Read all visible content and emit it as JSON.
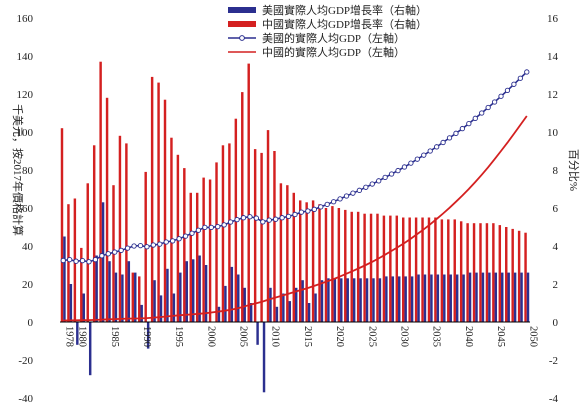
{
  "chart_data": {
    "type": "bar+line",
    "title": "",
    "ylabel_left": "千美元，按2017年價格計算",
    "ylabel_right": "百分比%",
    "y_left_range": [
      -40,
      160
    ],
    "y_left_ticks": [
      -40,
      -20,
      0,
      20,
      40,
      60,
      80,
      100,
      120,
      140,
      160
    ],
    "y_right_range": [
      -4,
      16
    ],
    "y_right_ticks": [
      -4,
      -2,
      0,
      2,
      4,
      6,
      8,
      10,
      12,
      14,
      16
    ],
    "x_range": [
      1978,
      2050
    ],
    "x_ticks": [
      1978,
      1980,
      1985,
      1990,
      1995,
      2000,
      2005,
      2010,
      2015,
      2020,
      2025,
      2030,
      2035,
      2040,
      2045,
      2050
    ],
    "legend_position": "top-right",
    "legend": [
      {
        "key": "us_growth",
        "label": "美國實際人均GDP增長率（右軸）",
        "color": "#2b2f8f",
        "kind": "bar"
      },
      {
        "key": "cn_growth",
        "label": "中國實際人均GDP增長率（右軸）",
        "color": "#d42020",
        "kind": "bar"
      },
      {
        "key": "us_gdp",
        "label": "美國的實際人均GDP（左軸）",
        "color": "#2b2f8f",
        "kind": "line-marker"
      },
      {
        "key": "cn_gdp",
        "label": "中國的實際人均GDP（左軸）",
        "color": "#d42020",
        "kind": "line"
      }
    ],
    "years": [
      1978,
      1979,
      1980,
      1981,
      1982,
      1983,
      1984,
      1985,
      1986,
      1987,
      1988,
      1989,
      1990,
      1991,
      1992,
      1993,
      1994,
      1995,
      1996,
      1997,
      1998,
      1999,
      2000,
      2001,
      2002,
      2003,
      2004,
      2005,
      2006,
      2007,
      2008,
      2009,
      2010,
      2011,
      2012,
      2013,
      2014,
      2015,
      2016,
      2017,
      2018,
      2019,
      2020,
      2021,
      2022,
      2023,
      2024,
      2025,
      2026,
      2027,
      2028,
      2029,
      2030,
      2031,
      2032,
      2033,
      2034,
      2035,
      2036,
      2037,
      2038,
      2039,
      2040,
      2041,
      2042,
      2043,
      2044,
      2045,
      2046,
      2047,
      2048,
      2049,
      2050
    ],
    "series": [
      {
        "key": "cn_growth",
        "axis": "right",
        "values": [
          10.2,
          6.2,
          6.5,
          3.9,
          7.3,
          9.3,
          13.7,
          11.8,
          7.2,
          9.8,
          9.4,
          2.6,
          2.4,
          7.9,
          12.9,
          12.6,
          11.7,
          9.7,
          8.8,
          8.1,
          6.8,
          6.8,
          7.6,
          7.5,
          8.4,
          9.3,
          9.4,
          10.7,
          12.1,
          13.6,
          9.1,
          8.9,
          10.1,
          9.0,
          7.3,
          7.2,
          6.8,
          6.4,
          6.3,
          6.4,
          6.2,
          6.0,
          6.1,
          6.0,
          5.9,
          5.8,
          5.8,
          5.7,
          5.7,
          5.7,
          5.6,
          5.6,
          5.6,
          5.5,
          5.5,
          5.5,
          5.5,
          5.5,
          5.5,
          5.4,
          5.4,
          5.4,
          5.3,
          5.2,
          5.2,
          5.2,
          5.2,
          5.2,
          5.1,
          5.0,
          4.9,
          4.8,
          4.7
        ]
      },
      {
        "key": "us_growth",
        "axis": "right",
        "values": [
          4.5,
          2.0,
          -1.2,
          1.5,
          -2.8,
          3.5,
          6.3,
          3.2,
          2.6,
          2.5,
          3.2,
          2.6,
          0.9,
          -1.4,
          2.2,
          1.4,
          2.8,
          1.5,
          2.6,
          3.2,
          3.3,
          3.5,
          3.0,
          0.0,
          0.8,
          1.9,
          2.9,
          2.5,
          1.8,
          1.0,
          -1.2,
          -3.7,
          1.8,
          0.8,
          1.5,
          1.1,
          1.8,
          2.2,
          1.0,
          1.5,
          2.2,
          2.3,
          2.3,
          2.3,
          2.3,
          2.3,
          2.3,
          2.3,
          2.3,
          2.3,
          2.4,
          2.4,
          2.4,
          2.4,
          2.4,
          2.5,
          2.5,
          2.5,
          2.5,
          2.5,
          2.5,
          2.5,
          2.5,
          2.6,
          2.6,
          2.6,
          2.6,
          2.6,
          2.6,
          2.6,
          2.6,
          2.6,
          2.6
        ]
      },
      {
        "key": "us_gdp",
        "axis": "left",
        "values": [
          32.4,
          32.8,
          32.0,
          32.3,
          31.7,
          32.8,
          34.9,
          35.9,
          36.8,
          37.7,
          38.9,
          40.0,
          40.2,
          39.6,
          40.5,
          41.0,
          42.1,
          42.7,
          43.8,
          45.2,
          46.7,
          48.3,
          49.8,
          49.8,
          50.2,
          51.1,
          52.6,
          53.9,
          54.9,
          55.4,
          54.7,
          52.7,
          53.6,
          54.1,
          54.9,
          55.6,
          56.6,
          57.8,
          58.4,
          59.3,
          60.6,
          61.9,
          63.3,
          64.8,
          66.3,
          67.8,
          69.3,
          70.9,
          72.6,
          74.3,
          76.1,
          77.9,
          79.7,
          81.6,
          83.6,
          85.7,
          87.8,
          90.0,
          92.2,
          94.5,
          96.9,
          99.3,
          101.8,
          104.4,
          107.2,
          110.0,
          112.9,
          115.8,
          118.8,
          121.9,
          125.1,
          128.3,
          131.6
        ]
      },
      {
        "key": "cn_gdp",
        "axis": "left",
        "values": [
          0.8,
          0.85,
          0.9,
          0.93,
          1.0,
          1.1,
          1.25,
          1.4,
          1.5,
          1.65,
          1.8,
          1.85,
          1.9,
          2.05,
          2.3,
          2.6,
          2.9,
          3.2,
          3.5,
          3.8,
          4.0,
          4.3,
          4.6,
          5.0,
          5.4,
          5.9,
          6.4,
          7.1,
          8.0,
          9.1,
          9.9,
          10.8,
          11.9,
          12.9,
          13.9,
          14.9,
          15.9,
          16.9,
          17.9,
          19.0,
          20.2,
          21.4,
          22.6,
          24.0,
          25.4,
          26.9,
          28.4,
          30.0,
          31.7,
          33.5,
          35.4,
          37.4,
          39.5,
          41.6,
          43.9,
          46.3,
          48.8,
          51.4,
          54.2,
          57.1,
          60.1,
          63.3,
          66.6,
          70.0,
          73.7,
          77.5,
          81.5,
          85.7,
          90.0,
          94.4,
          99.0,
          103.7,
          108.4
        ]
      }
    ]
  }
}
